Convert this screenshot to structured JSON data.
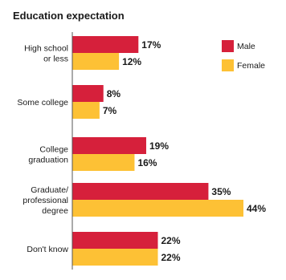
{
  "chart_data": {
    "type": "bar",
    "orientation": "horizontal",
    "title": "Education expectation",
    "categories": [
      [
        "High school",
        "or less"
      ],
      [
        "Some college"
      ],
      [
        "College",
        "graduation"
      ],
      [
        "Graduate/",
        "professional",
        "degree"
      ],
      [
        "Don't know"
      ]
    ],
    "series": [
      {
        "name": "Male",
        "color": "#d6203b",
        "values": [
          17,
          8,
          19,
          35,
          22
        ],
        "labels": [
          "17%",
          "8%",
          "19%",
          "35%",
          "22%"
        ]
      },
      {
        "name": "Female",
        "color": "#fdc135",
        "values": [
          12,
          7,
          16,
          44,
          22
        ],
        "labels": [
          "12%",
          "7%",
          "16%",
          "44%",
          "22%"
        ]
      }
    ],
    "xlim": [
      0,
      44
    ],
    "grid": false,
    "legend": "top-right"
  }
}
